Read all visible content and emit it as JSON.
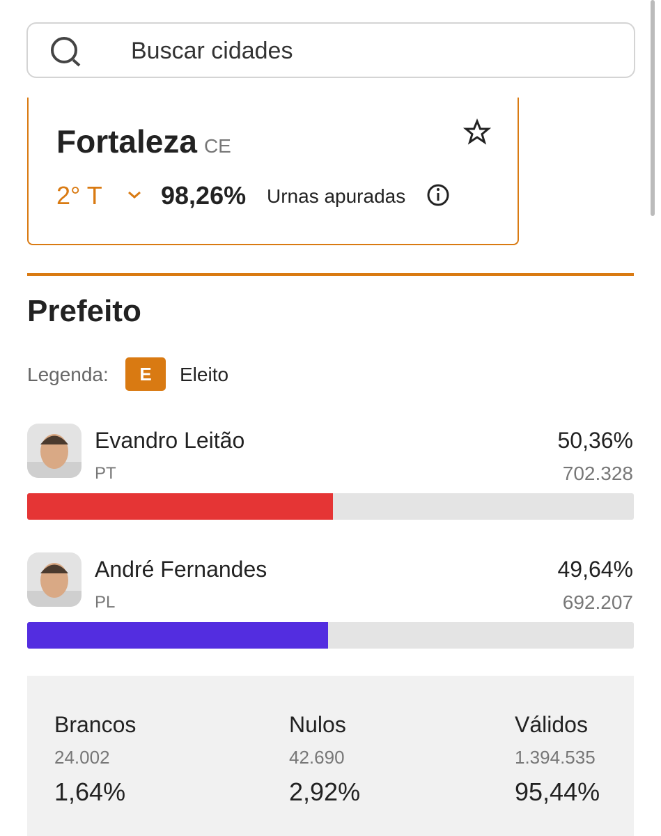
{
  "search": {
    "placeholder": "Buscar cidades"
  },
  "city": {
    "name": "Fortaleza",
    "state": "CE",
    "round": "2° T",
    "counted": "98,26%",
    "counted_label": "Urnas apuradas"
  },
  "section": {
    "title": "Prefeito",
    "legend_label": "Legenda:",
    "legend_badge": "E",
    "legend_text": "Eleito"
  },
  "candidates": [
    {
      "name": "Evandro Leitão",
      "party": "PT",
      "percent": {
        "value": 50.36,
        "label": "50,36%"
      },
      "votes": "702.328",
      "color": "#e53535"
    },
    {
      "name": "André Fernandes",
      "party": "PL",
      "percent": {
        "value": 49.64,
        "label": "49,64%"
      },
      "votes": "692.207",
      "color": "#532de0"
    }
  ],
  "totals": [
    {
      "label": "Brancos",
      "votes": "24.002",
      "percent": "1,64%"
    },
    {
      "label": "Nulos",
      "votes": "42.690",
      "percent": "2,92%"
    },
    {
      "label": "Válidos",
      "votes": "1.394.535",
      "percent": "95,44%"
    }
  ]
}
